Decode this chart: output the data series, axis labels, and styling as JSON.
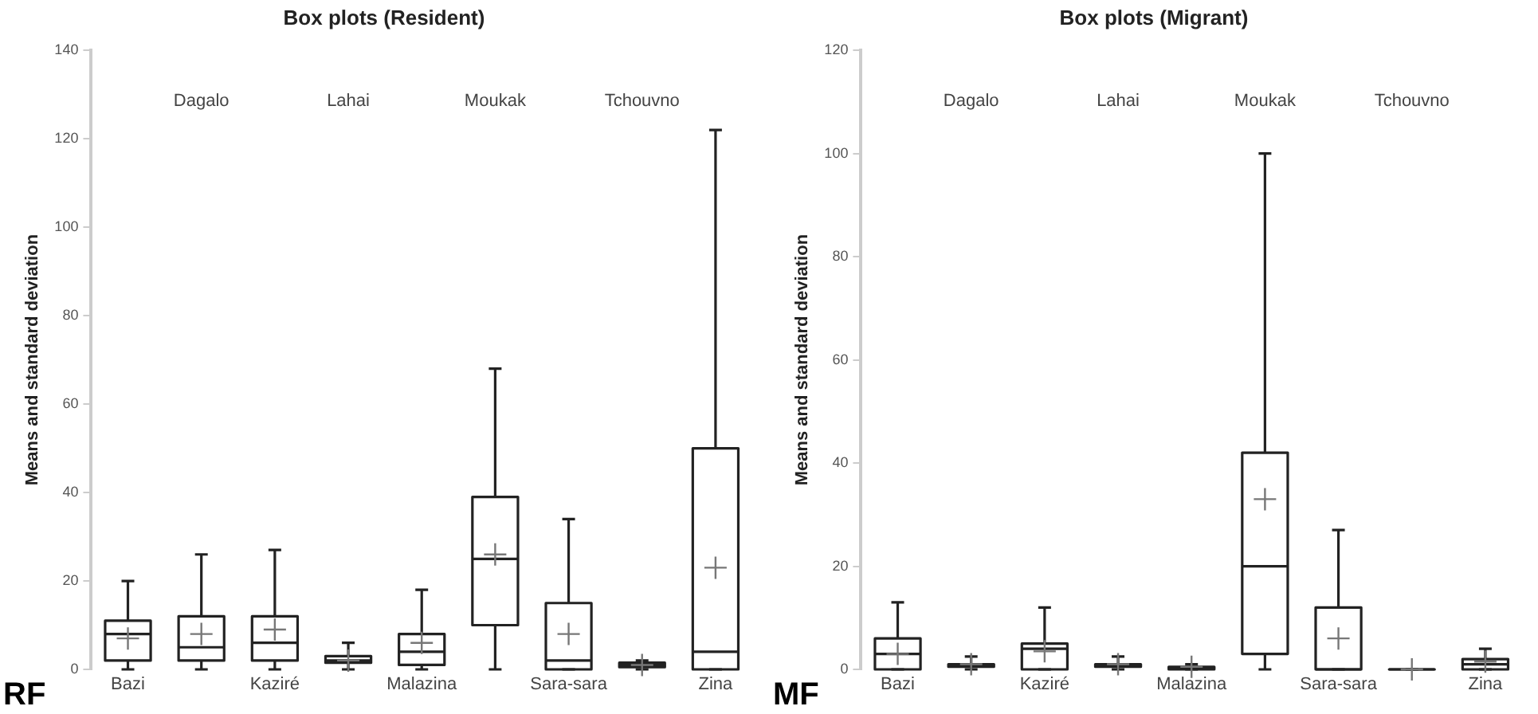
{
  "chart_data": [
    {
      "type": "box",
      "title": "Box plots (Resident)",
      "ylabel": "Means and standard deviation",
      "annotations": [
        "RF"
      ],
      "categories": [
        "Bazi",
        "Dagalo",
        "Kaziré",
        "Lahai",
        "Malazina",
        "Moukak",
        "Sara-sara",
        "Tchouvno",
        "Zina"
      ],
      "ylim": [
        0,
        140
      ],
      "yticks": [
        0,
        20,
        40,
        60,
        80,
        100,
        120,
        140
      ],
      "grid": false,
      "legend": false,
      "color": "#222222",
      "boxes": [
        {
          "low": 0,
          "q1": 2,
          "median": 8,
          "q3": 11,
          "high": 20,
          "mean": 7
        },
        {
          "low": 0,
          "q1": 2,
          "median": 5,
          "q3": 12,
          "high": 26,
          "mean": 8
        },
        {
          "low": 0,
          "q1": 2,
          "median": 6,
          "q3": 12,
          "high": 27,
          "mean": 9
        },
        {
          "low": 0,
          "q1": 1.5,
          "median": 2,
          "q3": 3,
          "high": 6,
          "mean": 2
        },
        {
          "low": 0,
          "q1": 1,
          "median": 4,
          "q3": 8,
          "high": 18,
          "mean": 6
        },
        {
          "low": 0,
          "q1": 10,
          "median": 25,
          "q3": 39,
          "high": 68,
          "mean": 26
        },
        {
          "low": 0,
          "q1": 0,
          "median": 2,
          "q3": 15,
          "high": 34,
          "mean": 8
        },
        {
          "low": 0,
          "q1": 0.5,
          "median": 1,
          "q3": 1.5,
          "high": 2,
          "mean": 1
        },
        {
          "low": 0,
          "q1": 0,
          "median": 4,
          "q3": 50,
          "high": 122,
          "mean": 23
        }
      ]
    },
    {
      "type": "box",
      "title": "Box plots (Migrant)",
      "ylabel": "Means and standard deviation",
      "annotations": [
        "MF"
      ],
      "categories": [
        "Bazi",
        "Dagalo",
        "Kaziré",
        "Lahai",
        "Malazina",
        "Moukak",
        "Sara-sara",
        "Tchouvno",
        "Zina"
      ],
      "ylim": [
        0,
        120
      ],
      "yticks": [
        0,
        20,
        40,
        60,
        80,
        100,
        120
      ],
      "grid": false,
      "legend": false,
      "color": "#222222",
      "boxes": [
        {
          "low": 0,
          "q1": 0,
          "median": 3,
          "q3": 6,
          "high": 13,
          "mean": 3
        },
        {
          "low": 0,
          "q1": 0.5,
          "median": 0.8,
          "q3": 1,
          "high": 2.5,
          "mean": 1
        },
        {
          "low": 0,
          "q1": 0,
          "median": 4,
          "q3": 5,
          "high": 12,
          "mean": 3.5
        },
        {
          "low": 0,
          "q1": 0.5,
          "median": 0.8,
          "q3": 1,
          "high": 2.5,
          "mean": 1
        },
        {
          "low": 0,
          "q1": 0,
          "median": 0.3,
          "q3": 0.5,
          "high": 1,
          "mean": 0.5
        },
        {
          "low": 0,
          "q1": 3,
          "median": 20,
          "q3": 42,
          "high": 100,
          "mean": 33
        },
        {
          "low": 0,
          "q1": 0,
          "median": 0,
          "q3": 12,
          "high": 27,
          "mean": 6
        },
        {
          "low": 0,
          "q1": 0,
          "median": 0,
          "q3": 0,
          "high": 0,
          "mean": 0
        },
        {
          "low": 0,
          "q1": 0,
          "median": 1,
          "q3": 2,
          "high": 4,
          "mean": 1.5
        }
      ]
    }
  ]
}
